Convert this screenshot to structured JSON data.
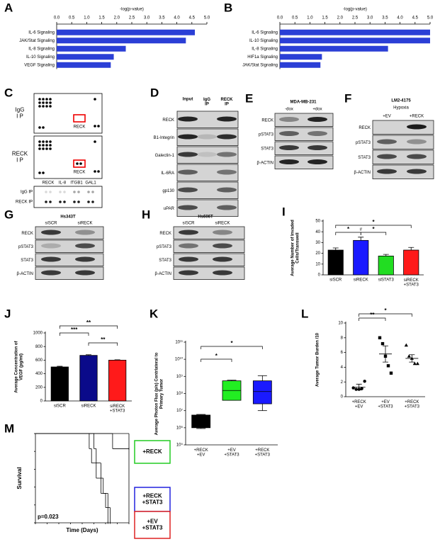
{
  "panel_labels": [
    "A",
    "B",
    "C",
    "D",
    "E",
    "F",
    "G",
    "H",
    "I",
    "J",
    "K",
    "L",
    "M"
  ],
  "chart_data": [
    {
      "type": "bar",
      "orientation": "horizontal",
      "xlabel": "-log(p-value)",
      "categories": [
        "IL-6 Signaling",
        "JAK/Stat Signaling",
        "IL-8 Signaling",
        "IL-10 Signaling",
        "VEGF Signaling"
      ],
      "values": [
        4.6,
        4.3,
        2.3,
        1.9,
        1.8
      ],
      "color": "#2b3fd6",
      "xlim": [
        0,
        5
      ],
      "xticks": [
        {
          "value": 0,
          "label": "0.0"
        },
        {
          "value": 0.5,
          "label": "0.5"
        },
        {
          "value": 1,
          "label": "1.0"
        },
        {
          "value": 1.5,
          "label": "1.5"
        },
        {
          "value": 2,
          "label": "2.0"
        },
        {
          "value": 2.5,
          "label": "2.5"
        },
        {
          "value": 3,
          "label": "3.0"
        },
        {
          "value": 3.5,
          "label": "3.5"
        },
        {
          "value": 4,
          "label": "4.0"
        },
        {
          "value": 4.5,
          "label": "4.5"
        },
        {
          "value": 5,
          "label": "5.0"
        }
      ]
    },
    {
      "type": "bar",
      "orientation": "horizontal",
      "xlabel": "-log(p-value)",
      "categories": [
        "IL-6 Signaling",
        "IL-10 Signaling",
        "IL-8 Signaling",
        "HIF1a Signaling",
        "JAK/Stat Signaling"
      ],
      "values": [
        5.0,
        5.0,
        3.6,
        1.4,
        1.35
      ],
      "color": "#2b3fd6",
      "xlim": [
        0,
        5
      ],
      "xticks": [
        {
          "value": 0,
          "label": "0.0"
        },
        {
          "value": 0.5,
          "label": "0.5"
        },
        {
          "value": 1,
          "label": "1.0"
        },
        {
          "value": 1.5,
          "label": "1.5"
        },
        {
          "value": 2,
          "label": "2.0"
        },
        {
          "value": 2.5,
          "label": "2.5"
        },
        {
          "value": 3,
          "label": "3.0"
        },
        {
          "value": 3.5,
          "label": "3.5"
        },
        {
          "value": 4,
          "label": "4.0"
        },
        {
          "value": 4.5,
          "label": "4.5"
        },
        {
          "value": 5,
          "label": "5.0"
        }
      ]
    },
    {
      "type": "bar",
      "orientation": "vertical",
      "ylabel": "Average Number of Invaded\nCells/Transwell",
      "categories": [
        "siSCR",
        "siRECK",
        "siSTAT3",
        "siRECK\n+STAT3"
      ],
      "values": [
        23,
        32,
        17.5,
        23
      ],
      "errors": [
        2,
        3,
        1.5,
        2.5
      ],
      "colors": [
        "#000000",
        "#1a1aff",
        "#22dd22",
        "#ff1a1a"
      ],
      "ylim": [
        0,
        50
      ],
      "yticks": [
        0,
        10,
        20,
        30,
        40,
        50
      ],
      "annotations": [
        "*",
        "*",
        "*",
        "#"
      ]
    },
    {
      "type": "bar",
      "orientation": "vertical",
      "ylabel": "Average Concentration of\nVEGF (pg/ml)",
      "categories": [
        "siSCR",
        "siRECK",
        "siRECK\n+STAT3"
      ],
      "values": [
        500,
        670,
        600
      ],
      "errors": [
        10,
        10,
        5
      ],
      "colors": [
        "#000000",
        "#0a0a8a",
        "#ff1a1a"
      ],
      "ylim": [
        0,
        1000
      ],
      "yticks": [
        0,
        200,
        400,
        600,
        800,
        1000
      ],
      "annotations": [
        "***",
        "**",
        "**"
      ]
    },
    {
      "type": "box",
      "log_scale": true,
      "ylabel": "Average Photon Flux (p/s) Contrlateral to\nPrimary Tumor",
      "categories": [
        "+RECK\n+EV",
        "+EV\n+STAT3",
        "+RECK\n+STAT3"
      ],
      "boxes": [
        {
          "min": 900000,
          "q1": 1000000,
          "median": 2000000,
          "q3": 5500000,
          "max": 6000000
        },
        {
          "min": 40000000,
          "q1": 40000000,
          "median": 150000000,
          "q3": 550000000,
          "max": 600000000
        },
        {
          "min": 10000000,
          "q1": 25000000,
          "median": 130000000,
          "q3": 550000000,
          "max": 1100000000
        }
      ],
      "colors": [
        "#000000",
        "#22ee22",
        "#1a1aff"
      ],
      "ylim": [
        100000,
        100000000000
      ],
      "yticks": [
        {
          "value": 100000,
          "label": "10⁵"
        },
        {
          "value": 1000000,
          "label": "10⁶"
        },
        {
          "value": 10000000,
          "label": "10⁷"
        },
        {
          "value": 100000000,
          "label": "10⁸"
        },
        {
          "value": 1000000000,
          "label": "10⁹"
        },
        {
          "value": 10000000000,
          "label": "10¹⁰"
        },
        {
          "value": 100000000000,
          "label": "10¹¹"
        }
      ],
      "annotations": [
        "*",
        "*"
      ]
    },
    {
      "type": "dot",
      "ylabel": "Average Tumor Burden /10",
      "categories": [
        "+RECK\n+EV",
        "+EV\n+STAT3",
        "+RECK\n+STAT3"
      ],
      "points": [
        [
          1.2,
          1.0,
          1.0,
          1.1,
          2.1
        ],
        [
          8.0,
          7.2,
          5.5,
          4.2,
          3.2
        ],
        [
          7.0,
          5.5,
          5.2,
          4.5,
          4.5
        ]
      ],
      "means": [
        1.3,
        5.8,
        5.2
      ],
      "errors": [
        0.4,
        1.1,
        0.5
      ],
      "markers": [
        "circle",
        "square",
        "triangle"
      ],
      "ylim": [
        0,
        10
      ],
      "yticks": [
        0,
        2,
        4,
        6,
        8,
        10
      ],
      "annotations": [
        "**",
        "*"
      ]
    },
    {
      "type": "line",
      "step": true,
      "ylabel": "Survival",
      "xlabel": "Time (Days)",
      "annotation": "p=0.023",
      "xlim": [
        0,
        40
      ],
      "ylim": [
        0,
        1
      ],
      "series": [
        {
          "name": "+RECK",
          "color": "#22cc22",
          "x": [
            0,
            33,
            40
          ],
          "values": [
            1.0,
            0.83,
            0.83
          ]
        },
        {
          "name": "+RECK\n+STAT3",
          "color": "#2222dd",
          "x": [
            0,
            25,
            26,
            28,
            29,
            31,
            32
          ],
          "values": [
            1.0,
            0.83,
            0.67,
            0.5,
            0.33,
            0.17,
            0
          ]
        },
        {
          "name": "+EV\n+STAT3",
          "color": "#dd2222",
          "x": [
            0,
            23,
            24,
            26,
            28,
            30,
            31
          ],
          "values": [
            1.0,
            0.83,
            0.67,
            0.5,
            0.33,
            0.17,
            0
          ]
        }
      ]
    }
  ],
  "blots": [
    {
      "array_labels": [
        "IgG\nI P",
        "RECK\nI P"
      ],
      "highlight_labels": [
        "RECK",
        "RECK"
      ],
      "strip_columns": [
        "RECK",
        "IL-8",
        "ITGB1",
        "GAL1"
      ],
      "strip_rows": [
        "IgG IP",
        "RECK IP"
      ]
    },
    {
      "columns": [
        "Input",
        "IgG\nIP",
        "RECK\nIP"
      ],
      "rows": [
        "RECK",
        "B1-Integrin",
        "Galectin-1",
        "IL-6RA",
        "gp130",
        "uPAR"
      ]
    },
    {
      "title": "MDA-MB-231",
      "columns": [
        "-dox",
        "+dox"
      ],
      "rows": [
        "RECK",
        "pSTAT3",
        "STAT3",
        "β-ACTIN"
      ]
    },
    {
      "title": "LM2-4175",
      "subtitle": "Hypoxia",
      "columns": [
        "+EV",
        "+RECK"
      ],
      "rows": [
        "RECK",
        "pSTAT3",
        "STAT3",
        "β-ACTIN"
      ]
    },
    {
      "title": "Hs343T",
      "columns": [
        "siSCR",
        "siRECK"
      ],
      "rows": [
        "RECK",
        "pSTAT3",
        "STAT3",
        "β-ACTIN"
      ]
    },
    {
      "title": "Hs606T",
      "columns": [
        "siSCR",
        "siRECK"
      ],
      "rows": [
        "RECK",
        "pSTAT3",
        "STAT3",
        "β-ACTIN"
      ]
    }
  ]
}
